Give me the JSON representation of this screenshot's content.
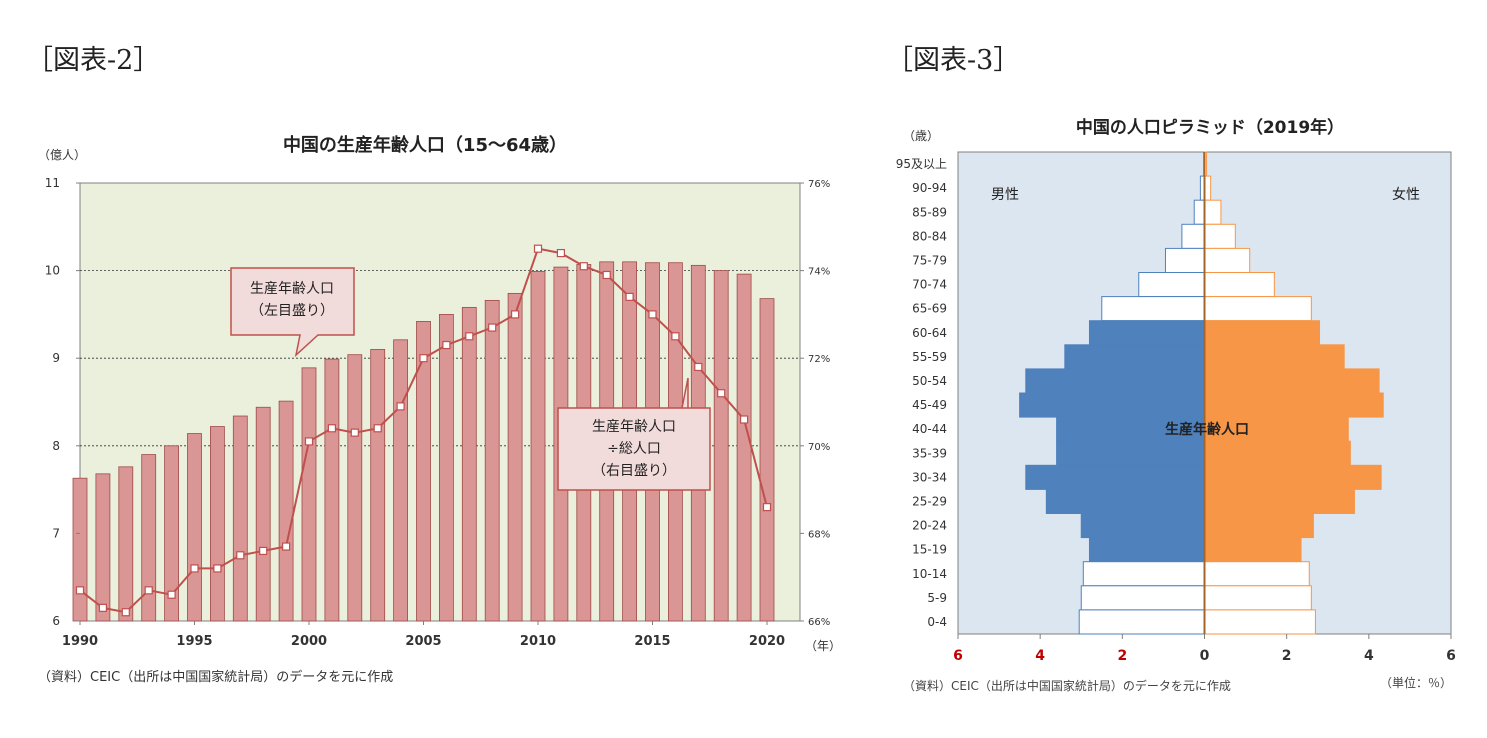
{
  "figure_labels": {
    "left": "［図表-2］",
    "right": "［図表-3］"
  },
  "chart_data": [
    {
      "type": "bar+line",
      "title": "中国の生産年齢人口（15～64歳）",
      "ylabel_left": "（億人）",
      "xlabel": "（年）",
      "x_tick_labels": [
        "1990",
        "1995",
        "2000",
        "2005",
        "2010",
        "2015",
        "2020"
      ],
      "y_left_ticks": [
        "6",
        "7",
        "8",
        "9",
        "10",
        "11"
      ],
      "y_right_ticks": [
        "66%",
        "68%",
        "70%",
        "72%",
        "74%",
        "76%"
      ],
      "ylim_left": [
        6,
        11
      ],
      "ylim_right": [
        66,
        76
      ],
      "grid": "horizontal dotted lines at 8, 9, 10",
      "plot_background": "#eaf0dc",
      "bar_color": "#d99694",
      "line_color": "#c0504d",
      "years": [
        1990,
        1991,
        1992,
        1993,
        1994,
        1995,
        1996,
        1997,
        1998,
        1999,
        2000,
        2001,
        2002,
        2003,
        2004,
        2005,
        2006,
        2007,
        2008,
        2009,
        2010,
        2011,
        2012,
        2013,
        2014,
        2015,
        2016,
        2017,
        2018,
        2019,
        2020
      ],
      "bars": [
        7.63,
        7.68,
        7.76,
        7.9,
        8.0,
        8.14,
        8.22,
        8.34,
        8.44,
        8.51,
        8.89,
        8.99,
        9.04,
        9.1,
        9.21,
        9.42,
        9.5,
        9.58,
        9.66,
        9.74,
        9.99,
        10.04,
        10.07,
        10.1,
        10.1,
        10.09,
        10.09,
        10.06,
        10.0,
        9.96,
        9.68
      ],
      "line_years": [
        1990,
        1991,
        1992,
        1993,
        1994,
        1995,
        1996,
        1997,
        1998,
        1999,
        2000,
        2001,
        2002,
        2003,
        2004,
        2005,
        2006,
        2007,
        2008,
        2009,
        2010,
        2011,
        2012,
        2013,
        2014,
        2015,
        2016,
        2017,
        2018,
        2019,
        2020
      ],
      "line": [
        66.7,
        66.3,
        66.2,
        66.7,
        66.6,
        67.2,
        67.2,
        67.5,
        67.6,
        67.7,
        70.1,
        70.4,
        70.3,
        70.4,
        70.9,
        72.0,
        72.3,
        72.5,
        72.7,
        73.0,
        74.5,
        74.4,
        74.1,
        73.9,
        73.4,
        73.0,
        72.5,
        71.8,
        71.2,
        70.6,
        68.6
      ],
      "annotations": [
        {
          "lines": [
            "生産年齢人口",
            "（左目盛り）"
          ]
        },
        {
          "lines": [
            "生産年齢人口",
            "÷総人口",
            "（右目盛り）"
          ]
        }
      ],
      "source": "（資料）CEIC（出所は中国国家統計局）のデータを元に作成"
    },
    {
      "type": "population-pyramid",
      "title": "中国の人口ピラミッド（2019年）",
      "ylabel": "（歳）",
      "unit": "（単位：％）",
      "left_label": "男性",
      "right_label": "女性",
      "center_label": "生産年齢人口",
      "x_tick_labels": [
        "6",
        "4",
        "2",
        "0",
        "2",
        "4",
        "6"
      ],
      "xlim": [
        -6,
        6
      ],
      "age_groups": [
        "95及以上",
        "90-94",
        "85-89",
        "80-84",
        "75-79",
        "70-74",
        "65-69",
        "60-64",
        "55-59",
        "50-54",
        "45-49",
        "40-44",
        "35-39",
        "30-34",
        "25-29",
        "20-24",
        "15-19",
        "10-14",
        "5-9",
        "0-4"
      ],
      "male": [
        0.02,
        0.1,
        0.25,
        0.55,
        0.95,
        1.6,
        2.5,
        2.8,
        3.4,
        4.35,
        4.5,
        3.6,
        3.6,
        4.35,
        3.85,
        3.0,
        2.8,
        2.95,
        3.0,
        3.05
      ],
      "female": [
        0.05,
        0.15,
        0.4,
        0.75,
        1.1,
        1.7,
        2.6,
        2.8,
        3.4,
        4.25,
        4.35,
        3.5,
        3.55,
        4.3,
        3.65,
        2.65,
        2.35,
        2.55,
        2.6,
        2.7
      ],
      "working_age_groups": [
        "15-19",
        "20-24",
        "25-29",
        "30-34",
        "35-39",
        "40-44",
        "45-49",
        "50-54",
        "55-59",
        "60-64"
      ],
      "colors": {
        "male": "#4f81bd",
        "female": "#f79646",
        "background": "#dce6f1",
        "center_line": "#a5642a"
      },
      "source": "（資料）CEIC（出所は中国国家統計局）のデータを元に作成"
    }
  ]
}
